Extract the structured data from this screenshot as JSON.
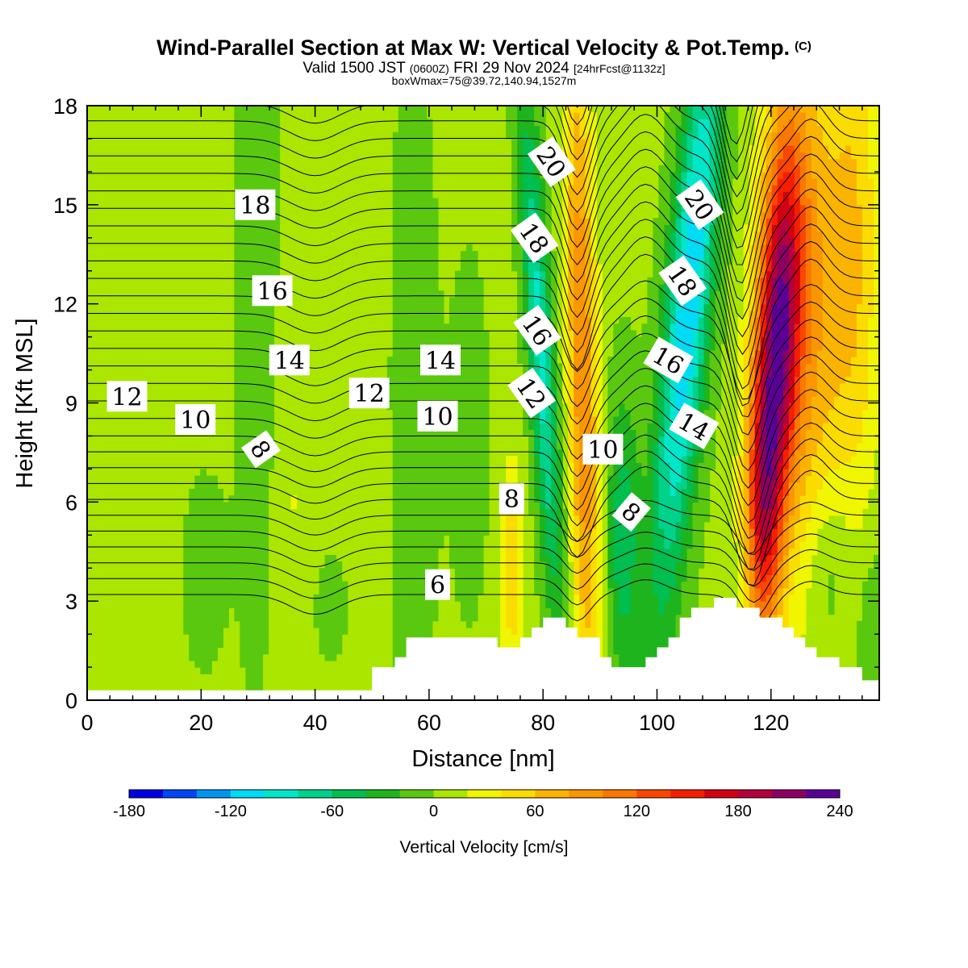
{
  "header": {
    "title": "Wind-Parallel Section at Max W: Vertical Velocity & Pot.Temp.",
    "copyright": "(C)",
    "valid_prefix": "Valid 1500 JST",
    "valid_utc": "(0600Z)",
    "valid_date": "FRI 29 Nov 2024",
    "forecast": "[24hrFcst@1132z]",
    "box_info": "boxWmax=75@39.72,140.94,1527m"
  },
  "chart_data": {
    "type": "contour",
    "xlabel": "Distance [nm]",
    "ylabel": "Height [Kft MSL]",
    "xlim": [
      0,
      139
    ],
    "ylim": [
      0,
      18
    ],
    "xticks": [
      0,
      20,
      40,
      60,
      80,
      100,
      120
    ],
    "yticks": [
      0,
      3,
      6,
      9,
      12,
      15,
      18
    ],
    "colorbar": {
      "label": "Vertical Velocity [cm/s]",
      "ticks": [
        -180,
        -120,
        -60,
        0,
        60,
        120,
        180,
        240
      ],
      "range": [
        -180,
        240
      ],
      "step": 20,
      "colors": [
        "#0000e6",
        "#0046f5",
        "#0096f0",
        "#00dcf5",
        "#00e6c8",
        "#00d28c",
        "#00be50",
        "#1eb41e",
        "#5ac80f",
        "#aae600",
        "#f0f500",
        "#fadc00",
        "#fab400",
        "#fa9600",
        "#fa7800",
        "#fa4600",
        "#f51e00",
        "#d20014",
        "#b4003c",
        "#8c0064",
        "#5a0096"
      ]
    },
    "shaded_field": "vertical velocity [cm/s]",
    "contour_field": "potential temperature",
    "contour_labels": [
      {
        "text": "20",
        "x": 81.5,
        "y": 16.3,
        "angle": 55
      },
      {
        "text": "20",
        "x": 107.5,
        "y": 15.0,
        "angle": 55
      },
      {
        "text": "18",
        "x": 29.5,
        "y": 15.0,
        "angle": 0
      },
      {
        "text": "18",
        "x": 78.5,
        "y": 14.0,
        "angle": 55
      },
      {
        "text": "18",
        "x": 104.5,
        "y": 12.7,
        "angle": 55
      },
      {
        "text": "16",
        "x": 32.5,
        "y": 12.4,
        "angle": 0
      },
      {
        "text": "16",
        "x": 79.0,
        "y": 11.2,
        "angle": 55
      },
      {
        "text": "16",
        "x": 102.0,
        "y": 10.3,
        "angle": 30
      },
      {
        "text": "14",
        "x": 35.5,
        "y": 10.3,
        "angle": 0
      },
      {
        "text": "14",
        "x": 62.0,
        "y": 10.3,
        "angle": 0
      },
      {
        "text": "14",
        "x": 106.5,
        "y": 8.3,
        "angle": 30
      },
      {
        "text": "12",
        "x": 7.0,
        "y": 9.2,
        "angle": 0
      },
      {
        "text": "12",
        "x": 49.5,
        "y": 9.3,
        "angle": 0
      },
      {
        "text": "12",
        "x": 78.0,
        "y": 9.3,
        "angle": 55
      },
      {
        "text": "10",
        "x": 19.0,
        "y": 8.5,
        "angle": 0
      },
      {
        "text": "10",
        "x": 61.5,
        "y": 8.6,
        "angle": 0
      },
      {
        "text": "10",
        "x": 90.5,
        "y": 7.6,
        "angle": 0
      },
      {
        "text": "8",
        "x": 30.5,
        "y": 7.6,
        "angle": 55
      },
      {
        "text": "8",
        "x": 74.5,
        "y": 6.1,
        "angle": 0
      },
      {
        "text": "8",
        "x": 95.5,
        "y": 5.7,
        "angle": 40
      },
      {
        "text": "6",
        "x": 61.5,
        "y": 3.5,
        "angle": 0
      }
    ],
    "terrain": [
      [
        0,
        0.3
      ],
      [
        2,
        0.3
      ],
      [
        4,
        0.3
      ],
      [
        6,
        0.3
      ],
      [
        8,
        0.3
      ],
      [
        10,
        0.3
      ],
      [
        12,
        0.3
      ],
      [
        14,
        0.3
      ],
      [
        16,
        0.3
      ],
      [
        18,
        0.3
      ],
      [
        20,
        0.3
      ],
      [
        22,
        0.3
      ],
      [
        24,
        0.3
      ],
      [
        26,
        0.3
      ],
      [
        28,
        0.3
      ],
      [
        30,
        0.3
      ],
      [
        32,
        0.3
      ],
      [
        34,
        0.3
      ],
      [
        36,
        0.3
      ],
      [
        38,
        0.3
      ],
      [
        40,
        0.3
      ],
      [
        42,
        0.3
      ],
      [
        44,
        0.3
      ],
      [
        46,
        0.3
      ],
      [
        48,
        0.3
      ],
      [
        50,
        1.0
      ],
      [
        52,
        1.0
      ],
      [
        54,
        1.3
      ],
      [
        56,
        1.9
      ],
      [
        58,
        1.9
      ],
      [
        60,
        1.9
      ],
      [
        62,
        1.9
      ],
      [
        64,
        1.9
      ],
      [
        66,
        1.9
      ],
      [
        68,
        1.9
      ],
      [
        70,
        1.9
      ],
      [
        72,
        1.6
      ],
      [
        74,
        1.6
      ],
      [
        76,
        1.9
      ],
      [
        78,
        2.2
      ],
      [
        80,
        2.5
      ],
      [
        82,
        2.5
      ],
      [
        84,
        2.2
      ],
      [
        86,
        1.9
      ],
      [
        88,
        1.9
      ],
      [
        90,
        1.3
      ],
      [
        92,
        1.0
      ],
      [
        94,
        1.0
      ],
      [
        96,
        1.0
      ],
      [
        98,
        1.3
      ],
      [
        100,
        1.6
      ],
      [
        102,
        1.9
      ],
      [
        104,
        2.5
      ],
      [
        106,
        2.8
      ],
      [
        108,
        2.8
      ],
      [
        110,
        3.1
      ],
      [
        112,
        3.1
      ],
      [
        114,
        2.8
      ],
      [
        116,
        2.8
      ],
      [
        118,
        2.5
      ],
      [
        120,
        2.5
      ],
      [
        122,
        2.2
      ],
      [
        124,
        1.9
      ],
      [
        126,
        1.6
      ],
      [
        128,
        1.3
      ],
      [
        130,
        1.3
      ],
      [
        132,
        1.0
      ],
      [
        134,
        1.0
      ],
      [
        136,
        0.6
      ],
      [
        138,
        0.6
      ]
    ]
  }
}
